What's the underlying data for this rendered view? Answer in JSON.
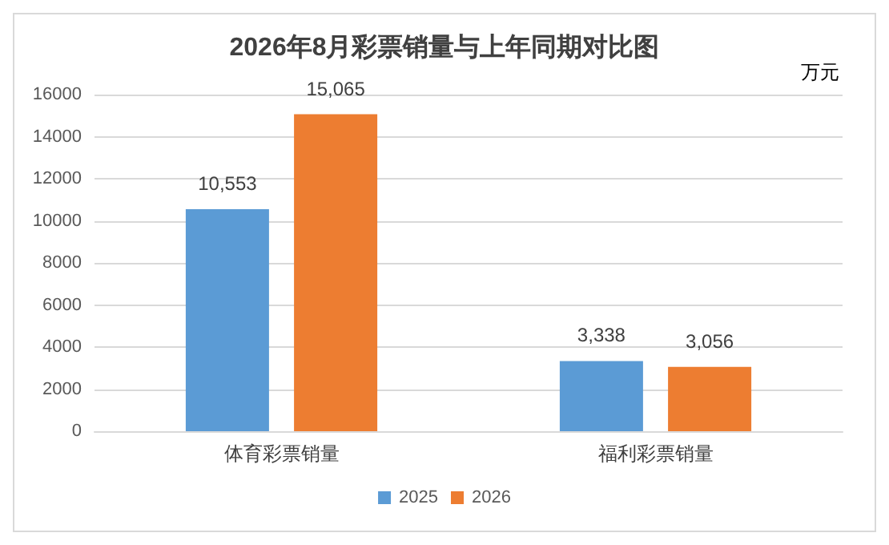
{
  "chart_data": {
    "type": "bar",
    "title": "2026年8月彩票销量与上年同期对比图",
    "ylabel": "万元",
    "categories": [
      "体育彩票销量",
      "福利彩票销量"
    ],
    "series": [
      {
        "name": "2025",
        "color": "#5b9bd5",
        "values": [
          10553,
          3338
        ],
        "value_labels": [
          "10,553",
          "3,338"
        ]
      },
      {
        "name": "2026",
        "color": "#ed7d31",
        "values": [
          15065,
          3056
        ],
        "value_labels": [
          "15,065",
          "3,056"
        ]
      }
    ],
    "ylim": [
      0,
      16000
    ],
    "yticks": [
      0,
      2000,
      4000,
      6000,
      8000,
      10000,
      12000,
      14000,
      16000
    ],
    "grid": "y",
    "legend": "bottom"
  }
}
